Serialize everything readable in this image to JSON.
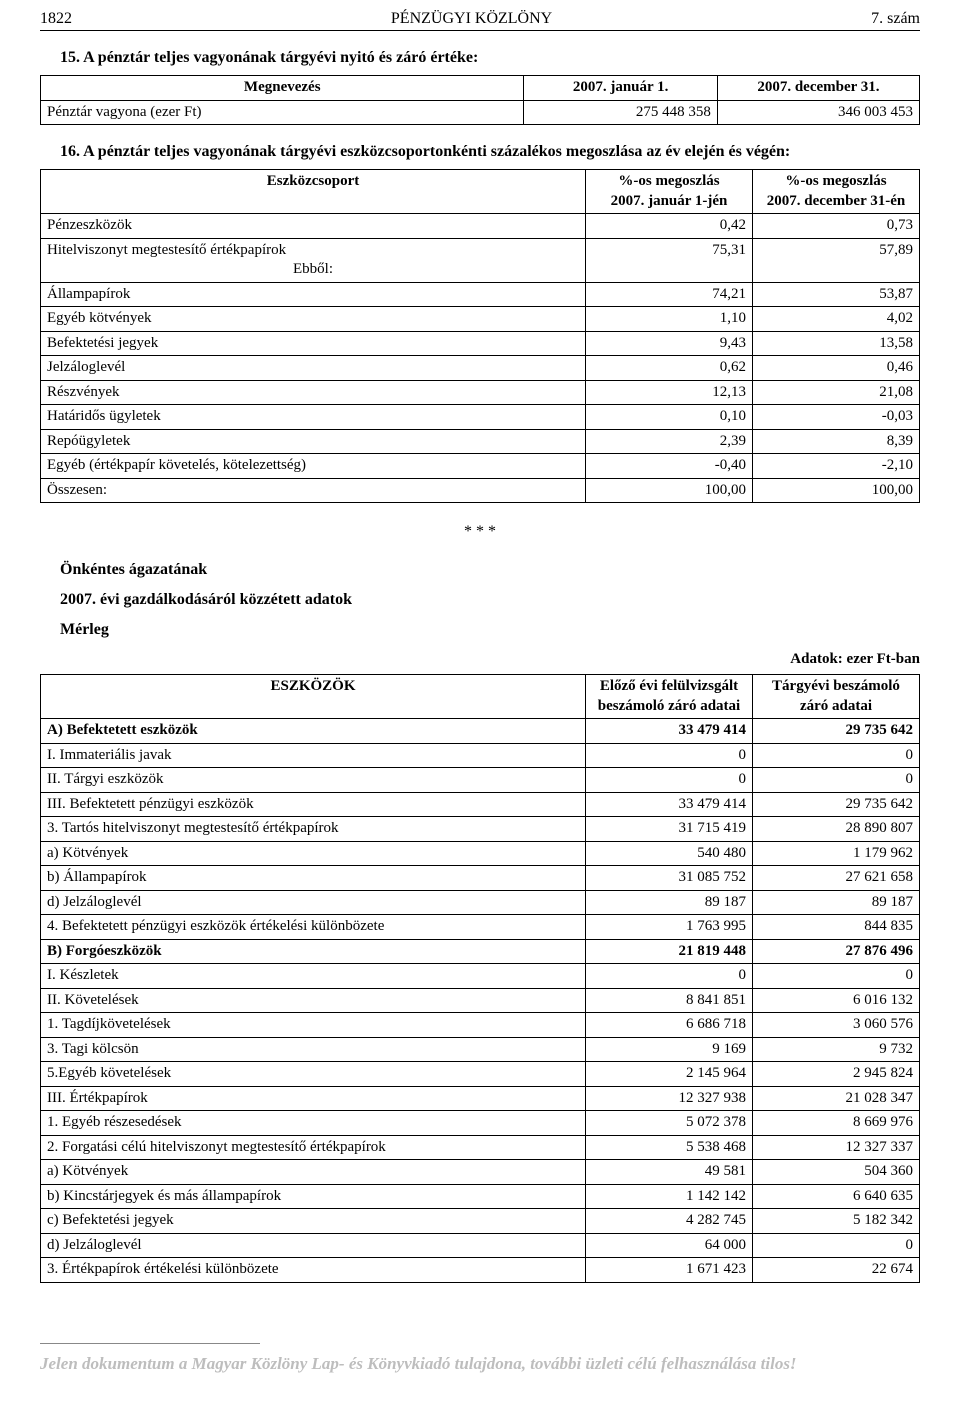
{
  "header": {
    "page_number": "1822",
    "title": "PÉNZÜGYI KÖZLÖNY",
    "issue": "7. szám"
  },
  "section15": {
    "title": "15. A pénztár teljes vagyonának tárgyévi nyitó és záró értéke:",
    "columns": [
      "Megnevezés",
      "2007. január 1.",
      "2007. december 31."
    ],
    "rows": [
      {
        "label": "Pénztár vagyona (ezer Ft)",
        "c1": "275 448 358",
        "c2": "346 003 453"
      }
    ]
  },
  "section16": {
    "title": "16. A pénztár teljes vagyonának tárgyévi eszközcsoportonkénti százalékos megoszlása az év elején és végén:",
    "columns": [
      "Eszközcsoport",
      "%-os megoszlás\n2007. január 1-jén",
      "%-os megoszlás\n2007. december 31-én"
    ],
    "rows": [
      {
        "label": "Pénzeszközök",
        "c1": "0,42",
        "c2": "0,73"
      },
      {
        "label": "Hitelviszonyt megtestesítő értékpapírok",
        "ebbol": "Ebből:",
        "c1": "75,31",
        "c2": "57,89"
      },
      {
        "label": "Állampapírok",
        "c1": "74,21",
        "c2": "53,87"
      },
      {
        "label": "Egyéb kötvények",
        "c1": "1,10",
        "c2": "4,02"
      },
      {
        "label": "Befektetési jegyek",
        "c1": "9,43",
        "c2": "13,58"
      },
      {
        "label": "Jelzáloglevél",
        "c1": "0,62",
        "c2": "0,46"
      },
      {
        "label": "Részvények",
        "c1": "12,13",
        "c2": "21,08"
      },
      {
        "label": "Határidős ügyletek",
        "c1": "0,10",
        "c2": "-0,03"
      },
      {
        "label": "Repóügyletek",
        "c1": "2,39",
        "c2": "8,39"
      },
      {
        "label": "Egyéb (értékpapír követelés, kötelezettség)",
        "c1": "-0,40",
        "c2": "-2,10"
      },
      {
        "label": "Összesen:",
        "c1": "100,00",
        "c2": "100,00"
      }
    ]
  },
  "separator": "* * *",
  "subheadings": {
    "h1": "Önkéntes ágazatának",
    "h2": "2007. évi gazdálkodásáról közzétett adatok",
    "h3": "Mérleg"
  },
  "units_label": "Adatok: ezer Ft-ban",
  "merleg": {
    "columns": [
      "ESZKÖZÖK",
      "Előző évi felülvizsgált\nbeszámoló záró adatai",
      "Tárgyévi beszámoló\nzáró adatai"
    ],
    "rows": [
      {
        "label": "A) Befektetett eszközök",
        "c1": "33 479 414",
        "c2": "29 735 642",
        "bold": true
      },
      {
        "label": "I. Immateriális javak",
        "c1": "0",
        "c2": "0"
      },
      {
        "label": "II. Tárgyi eszközök",
        "c1": "0",
        "c2": "0"
      },
      {
        "label": "III. Befektetett pénzügyi eszközök",
        "c1": "33 479 414",
        "c2": "29 735 642"
      },
      {
        "label": "3. Tartós hitelviszonyt megtestesítő értékpapírok",
        "c1": "31 715 419",
        "c2": "28 890 807"
      },
      {
        "label": "a) Kötvények",
        "c1": "540 480",
        "c2": "1 179 962"
      },
      {
        "label": "b) Állampapírok",
        "c1": "31 085 752",
        "c2": "27 621 658"
      },
      {
        "label": "d) Jelzáloglevél",
        "c1": "89 187",
        "c2": "89 187"
      },
      {
        "label": "4. Befektetett pénzügyi eszközök értékelési különbözete",
        "c1": "1 763 995",
        "c2": "844 835"
      },
      {
        "label": "B) Forgóeszközök",
        "c1": "21 819 448",
        "c2": "27 876 496",
        "bold": true
      },
      {
        "label": "I. Készletek",
        "c1": "0",
        "c2": "0"
      },
      {
        "label": "II. Követelések",
        "c1": "8 841 851",
        "c2": "6 016 132"
      },
      {
        "label": "1. Tagdíjkövetelések",
        "c1": "6 686 718",
        "c2": "3 060 576"
      },
      {
        "label": "3. Tagi kölcsön",
        "c1": "9 169",
        "c2": "9 732"
      },
      {
        "label": "5.Egyéb követelések",
        "c1": "2 145 964",
        "c2": "2 945 824"
      },
      {
        "label": "III. Értékpapírok",
        "c1": "12 327 938",
        "c2": "21 028 347"
      },
      {
        "label": "1. Egyéb részesedések",
        "c1": "5 072 378",
        "c2": "8 669 976"
      },
      {
        "label": "2. Forgatási célú hitelviszonyt megtestesítő értékpapírok",
        "c1": "5 538 468",
        "c2": "12 327 337"
      },
      {
        "label": "a) Kötvények",
        "c1": "49 581",
        "c2": "504 360"
      },
      {
        "label": "b) Kincstárjegyek és más állampapírok",
        "c1": "1 142 142",
        "c2": "6 640 635"
      },
      {
        "label": "c) Befektetési jegyek",
        "c1": "4 282 745",
        "c2": "5 182 342"
      },
      {
        "label": "d) Jelzáloglevél",
        "c1": "64 000",
        "c2": "0"
      },
      {
        "label": "3. Értékpapírok értékelési különbözete",
        "c1": "1 671 423",
        "c2": "22 674"
      }
    ]
  },
  "watermark": "Jelen dokumentum a Magyar Közlöny Lap- és Könyvkiadó tulajdona, további üzleti célú felhasználása tilos!"
}
